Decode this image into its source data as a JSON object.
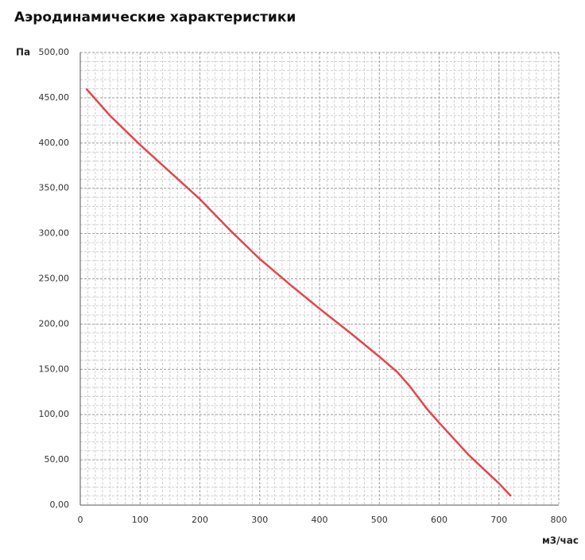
{
  "chart_data": {
    "type": "line",
    "title": "Аэродинамические характеристики",
    "y_label": "Па",
    "x_label": "м3/час",
    "x": [
      10,
      50,
      100,
      150,
      200,
      250,
      300,
      350,
      400,
      450,
      500,
      530,
      550,
      580,
      600,
      650,
      700,
      720
    ],
    "series": [
      {
        "name": "Аэродинамические характеристики",
        "color": "#e0474c",
        "values": [
          460,
          430,
          398,
          368,
          338,
          304,
          272,
          244,
          217,
          191,
          164,
          147,
          132,
          106,
          91,
          55,
          24,
          10
        ]
      }
    ],
    "xlim": [
      0,
      800
    ],
    "ylim": [
      0,
      500
    ],
    "xticks": [
      0,
      100,
      200,
      300,
      400,
      500,
      600,
      700,
      800
    ],
    "yticks": [
      {
        "value": 0,
        "label": "0,00"
      },
      {
        "value": 50,
        "label": "50,00"
      },
      {
        "value": 100,
        "label": "100,00"
      },
      {
        "value": 150,
        "label": "150,00"
      },
      {
        "value": 200,
        "label": "200,00"
      },
      {
        "value": 250,
        "label": "250,00"
      },
      {
        "value": 300,
        "label": "300,00"
      },
      {
        "value": 350,
        "label": "350,00"
      },
      {
        "value": 400,
        "label": "400,00"
      },
      {
        "value": 450,
        "label": "450,00"
      },
      {
        "value": 500,
        "label": "500,00"
      }
    ],
    "grid": true
  }
}
